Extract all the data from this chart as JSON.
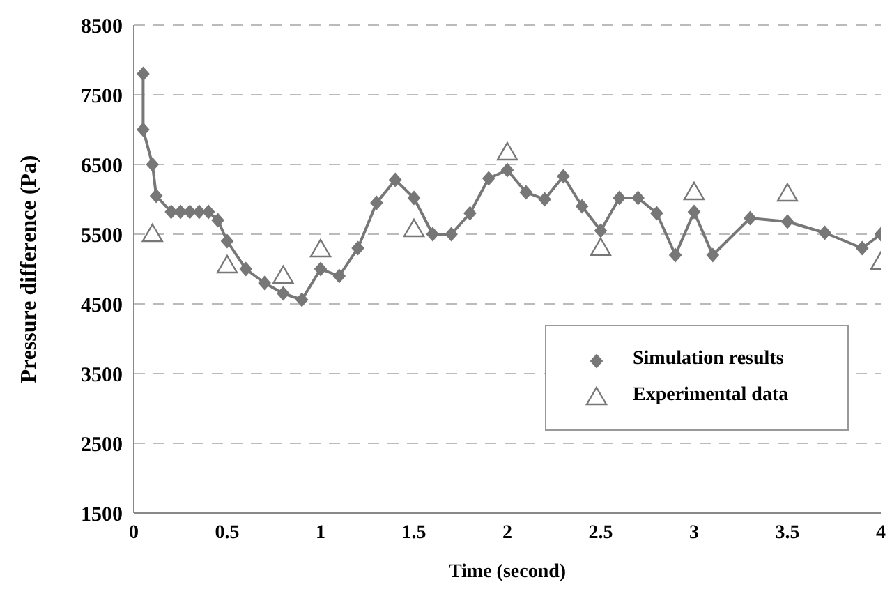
{
  "chart_data": {
    "type": "line",
    "xlabel": "Time (second)",
    "ylabel": "Pressure difference (Pa)",
    "xlim": [
      0,
      4
    ],
    "xticks": [
      0,
      0.5,
      1,
      1.5,
      2,
      2.5,
      3,
      3.5,
      4
    ],
    "ylim": [
      1500,
      8500
    ],
    "yticks": [
      1500,
      2500,
      3500,
      4500,
      5500,
      6500,
      7500,
      8500
    ],
    "grid": "y",
    "legend": "bottom right",
    "series": [
      {
        "name": "Simulation results",
        "color": "#777777",
        "marker": "diamond",
        "line_style": "solid",
        "x": [
          0.05,
          0.05,
          0.1,
          0.12,
          0.2,
          0.25,
          0.3,
          0.35,
          0.4,
          0.45,
          0.5,
          0.6,
          0.7,
          0.8,
          0.9,
          1.0,
          1.1,
          1.2,
          1.3,
          1.4,
          1.5,
          1.6,
          1.7,
          1.8,
          1.9,
          2.0,
          2.1,
          2.2,
          2.3,
          2.4,
          2.5,
          2.6,
          2.7,
          2.8,
          2.9,
          3.0,
          3.1,
          3.3,
          3.5,
          3.7,
          3.9,
          4.0
        ],
        "values": [
          7800,
          7000,
          6500,
          6050,
          5820,
          5820,
          5820,
          5820,
          5820,
          5700,
          5400,
          5000,
          4800,
          4650,
          4560,
          5000,
          4900,
          5300,
          5950,
          6280,
          6020,
          5500,
          5500,
          5800,
          6300,
          6420,
          6100,
          6000,
          6330,
          5900,
          5550,
          6020,
          6020,
          5800,
          5200,
          5820,
          5200,
          5730,
          5680,
          5520,
          5300,
          5500
        ]
      },
      {
        "name": "Experimental data",
        "type": "scatter",
        "color": "#777777",
        "marker": "triangle",
        "x": [
          0.1,
          0.5,
          0.8,
          1.0,
          1.5,
          2.0,
          2.5,
          3.0,
          3.5,
          4.0
        ],
        "values": [
          5500,
          5050,
          4900,
          5280,
          5570,
          6670,
          5300,
          6100,
          6080,
          5100
        ]
      }
    ]
  }
}
